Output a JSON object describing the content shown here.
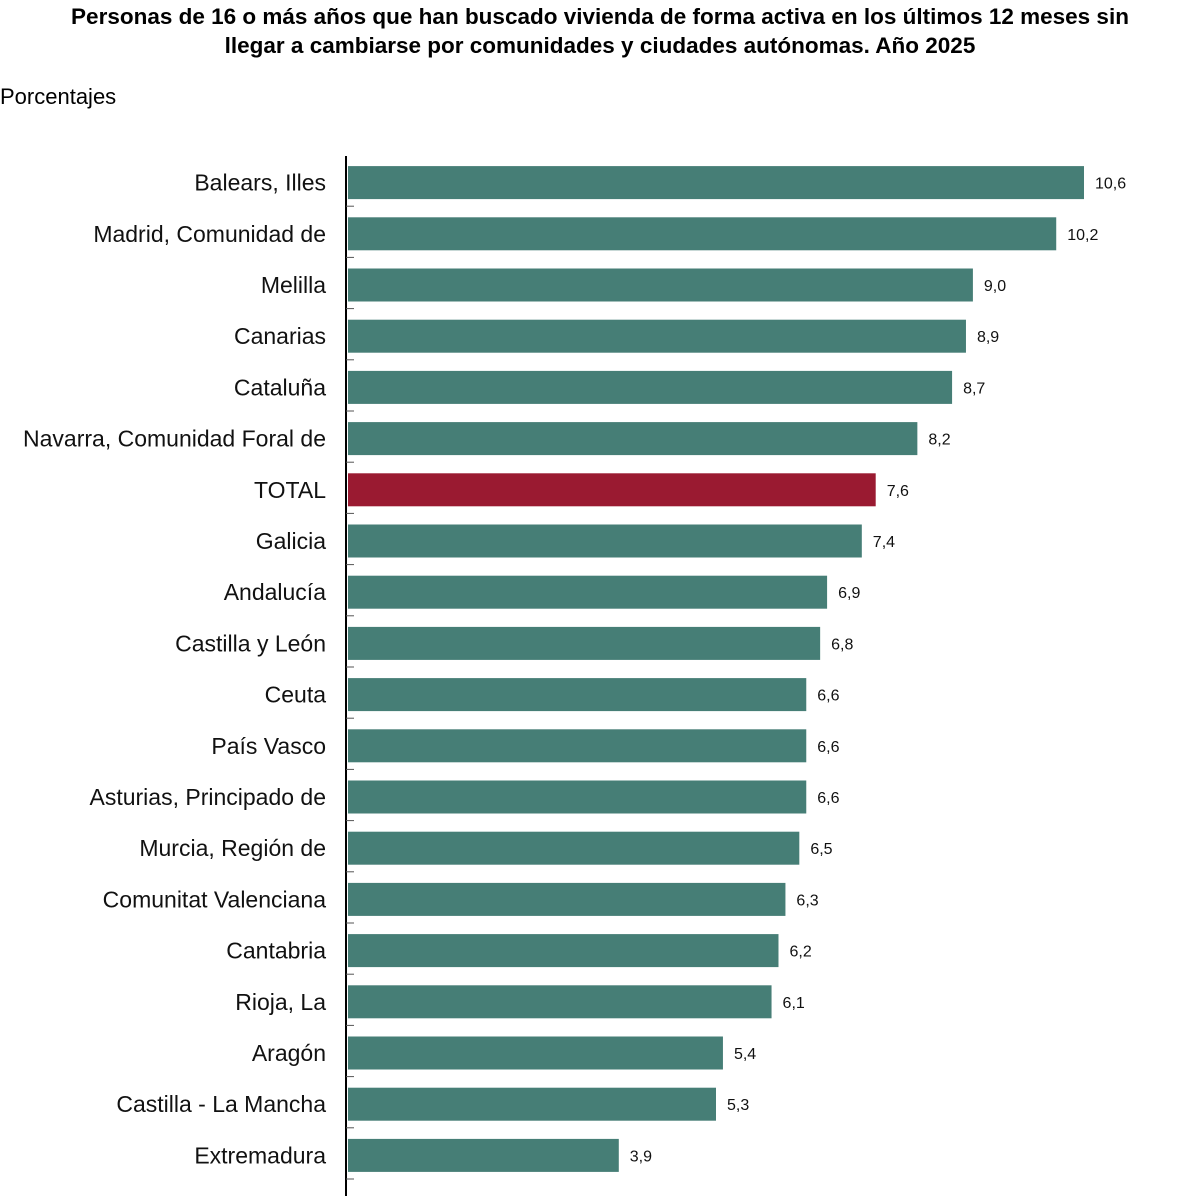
{
  "chart_data": {
    "type": "bar",
    "orientation": "horizontal",
    "title_line1": "Personas de 16 o más años que han buscado vivienda de forma activa en los últimos 12 meses sin",
    "title_line2": "llegar a cambiarse por comunidades y ciudades autónomas. Año 2025",
    "unit_label": "Porcentajes",
    "categories": [
      "Balears, Illes",
      "Madrid, Comunidad de",
      "Melilla",
      "Canarias",
      "Cataluña",
      "Navarra, Comunidad Foral de",
      "TOTAL",
      "Galicia",
      "Andalucía",
      "Castilla y León",
      "Ceuta",
      "País Vasco",
      "Asturias, Principado de",
      "Murcia, Región de",
      "Comunitat Valenciana",
      "Cantabria",
      "Rioja, La",
      "Aragón",
      "Castilla - La Mancha",
      "Extremadura"
    ],
    "values": [
      10.6,
      10.2,
      9.0,
      8.9,
      8.7,
      8.2,
      7.6,
      7.4,
      6.9,
      6.8,
      6.6,
      6.6,
      6.6,
      6.5,
      6.3,
      6.2,
      6.1,
      5.4,
      5.3,
      3.9
    ],
    "value_labels": [
      "10,6",
      "10,2",
      "9,0",
      "8,9",
      "8,7",
      "8,2",
      "7,6",
      "7,4",
      "6,9",
      "6,8",
      "6,6",
      "6,6",
      "6,6",
      "6,5",
      "6,3",
      "6,2",
      "6,1",
      "5,4",
      "5,3",
      "3,9"
    ],
    "highlight_category": "TOTAL",
    "xlim": [
      0,
      10.6
    ],
    "grid": false,
    "colors": {
      "bar": "#467e76",
      "highlight": "#9a1a31",
      "axis": "#000000"
    }
  }
}
